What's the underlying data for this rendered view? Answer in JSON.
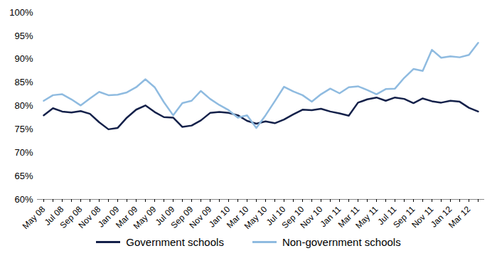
{
  "chart_data": {
    "type": "line",
    "categories": [
      "May 08",
      null,
      "Jul 08",
      null,
      "Sep 08",
      null,
      "Nov 08",
      null,
      "Jan 09",
      null,
      "Mar 09",
      null,
      "May 09",
      null,
      "Jul 09",
      null,
      "Sep 09",
      null,
      "Nov 09",
      null,
      "Jan 10",
      null,
      "Mar 10",
      null,
      "May 10",
      null,
      "Jul 10",
      null,
      "Sep 10",
      null,
      "Nov 10",
      null,
      "Jan 11",
      null,
      "Mar 11",
      null,
      "May 11",
      null,
      "Jul 11",
      null,
      "Sep 11",
      null,
      "Nov 11",
      null,
      "Jan 12",
      null,
      "Mar 12",
      null
    ],
    "series": [
      {
        "name": "Government schools",
        "color": "#14214a",
        "values": [
          78,
          79.5,
          78.8,
          78.6,
          78.9,
          78.3,
          76.5,
          75,
          75.3,
          77.5,
          79.2,
          80.1,
          78.7,
          77.6,
          77.5,
          75.5,
          75.8,
          76.9,
          78.5,
          78.7,
          78.5,
          78,
          76.8,
          76.2,
          76.7,
          76.3,
          77.1,
          78.2,
          79.2,
          79.1,
          79.4,
          78.8,
          78.4,
          77.9,
          80.7,
          81.4,
          81.8,
          81.1,
          81.8,
          81.5,
          80.6,
          81.6,
          81,
          80.7,
          81.1,
          80.9,
          79.6,
          78.8
        ]
      },
      {
        "name": "Non-government schools",
        "color": "#8fbbe0",
        "values": [
          81.1,
          82.3,
          82.5,
          81.4,
          80.1,
          81.6,
          83,
          82.3,
          82.4,
          82.9,
          84,
          85.7,
          84,
          80.8,
          78,
          80.6,
          81.1,
          83.2,
          81.5,
          80.2,
          79.1,
          77.5,
          78,
          75.3,
          78,
          81,
          84.1,
          83.1,
          82.3,
          80.9,
          82.5,
          83.7,
          82.7,
          84,
          84.2,
          83.4,
          82.5,
          83.6,
          83.7,
          86,
          87.9,
          87.5,
          92,
          90.3,
          90.6,
          90.4,
          90.9,
          93.5
        ]
      }
    ],
    "ylim": [
      60,
      100
    ],
    "yticks": [
      {
        "value": 60,
        "label": "60%"
      },
      {
        "value": 65,
        "label": "65%"
      },
      {
        "value": 70,
        "label": "70%"
      },
      {
        "value": 75,
        "label": "75%"
      },
      {
        "value": 80,
        "label": "80%"
      },
      {
        "value": 85,
        "label": "85%"
      },
      {
        "value": 90,
        "label": "90%"
      },
      {
        "value": 95,
        "label": "95%"
      },
      {
        "value": 100,
        "label": "100%"
      }
    ],
    "grid": false,
    "legend": "bottom"
  }
}
